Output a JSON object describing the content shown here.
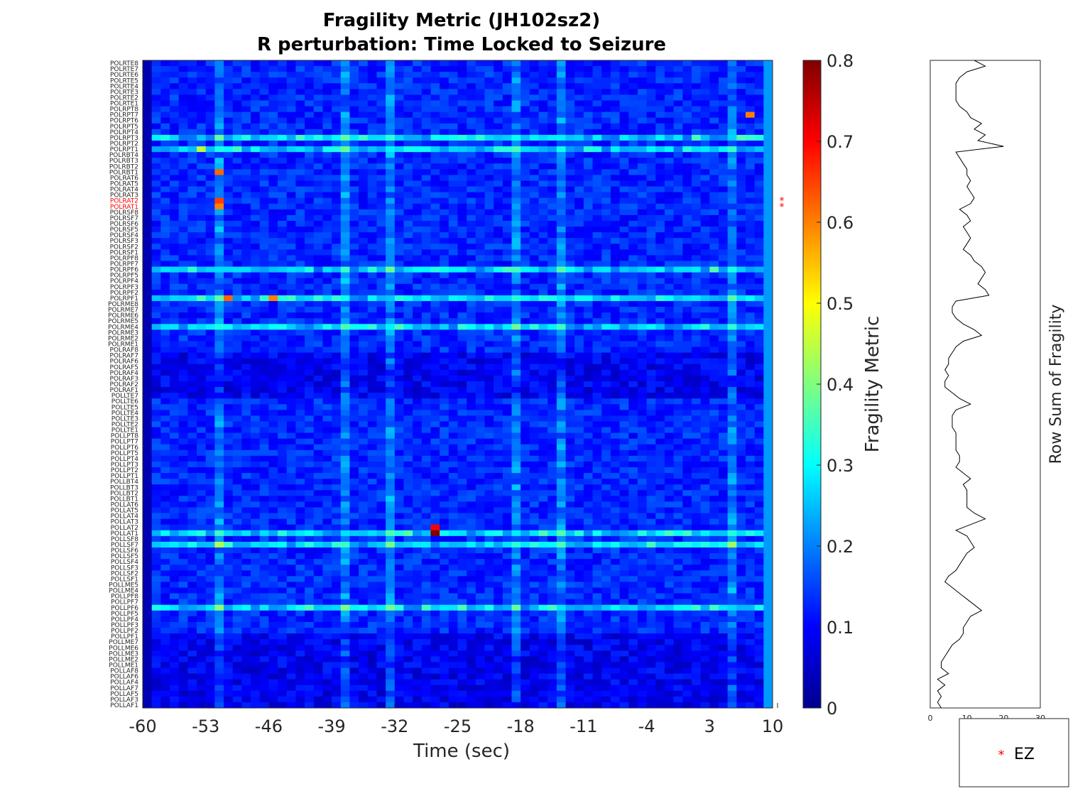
{
  "chart_data": [
    {
      "type": "heatmap",
      "title_lines": [
        "Fragility Metric (JH102sz2)",
        "R perturbation:  Time Locked to Seizure"
      ],
      "xlabel": "Time (sec)",
      "x_ticks": [
        "-60",
        "-53",
        "-46",
        "-39",
        "-32",
        "-25",
        "-18",
        "-11",
        "-4",
        "3",
        "10"
      ],
      "x_tick_values": [
        -60,
        -53,
        -46,
        -39,
        -32,
        -25,
        -18,
        -11,
        -4,
        3,
        10
      ],
      "x_range": [
        -60,
        10
      ],
      "n_time_windows": 70,
      "channels": [
        "POLRTE8",
        "POLRTE7",
        "POLRTE6",
        "POLRTE5",
        "POLRTE4",
        "POLRTE3",
        "POLRTE2",
        "POLRTE1",
        "POLRPT8",
        "POLRPT7",
        "POLRPT6",
        "POLRPT5",
        "POLRPT4",
        "POLRPT3",
        "POLRPT2",
        "POLRPT1",
        "POLRBT4",
        "POLRBT3",
        "POLRBT2",
        "POLRBT1",
        "POLRAT6",
        "POLRAT5",
        "POLRAT4",
        "POLRAT3",
        "POLRAT2",
        "POLRAT1",
        "POLRSF8",
        "POLRSF7",
        "POLRSF6",
        "POLRSF5",
        "POLRSF4",
        "POLRSF3",
        "POLRSF2",
        "POLRSF1",
        "POLRPF8",
        "POLRPF7",
        "POLRPF6",
        "POLRPF5",
        "POLRPF4",
        "POLRPF3",
        "POLRPF2",
        "POLRPF1",
        "POLRME8",
        "POLRME7",
        "POLRME6",
        "POLRME5",
        "POLRME4",
        "POLRME3",
        "POLRME2",
        "POLRME1",
        "POLRAF8",
        "POLRAF7",
        "POLRAF6",
        "POLRAF5",
        "POLRAF4",
        "POLRAF3",
        "POLRAF2",
        "POLRAF1",
        "POLLTE7",
        "POLLTE6",
        "POLLTE5",
        "POLLTE4",
        "POLLTE3",
        "POLLTE2",
        "POLLTE1",
        "POLLPT8",
        "POLLPT7",
        "POLLPT6",
        "POLLPT5",
        "POLLPT4",
        "POLLPT3",
        "POLLPT2",
        "POLLPT1",
        "POLLBT4",
        "POLLBT3",
        "POLLBT2",
        "POLLBT1",
        "POLLAT6",
        "POLLAT5",
        "POLLAT4",
        "POLLAT3",
        "POLLAT2",
        "POLLAT1",
        "POLLSF8",
        "POLLSF7",
        "POLLSF6",
        "POLLSF5",
        "POLLSF4",
        "POLLSF3",
        "POLLSF2",
        "POLLSF1",
        "POLLME5",
        "POLLME4",
        "POLLPF8",
        "POLLPF7",
        "POLLPF6",
        "POLLPF5",
        "POLLPF4",
        "POLLPF3",
        "POLLPF2",
        "POLLPF1",
        "POLLME7",
        "POLLME6",
        "POLLME3",
        "POLLME2",
        "POLLME1",
        "POLLAF8",
        "POLLAF6",
        "POLLAF4",
        "POLLAF7",
        "POLLAF5",
        "POLLAF3",
        "POLLAF1"
      ],
      "ez_channels": [
        "POLRAT2",
        "POLRAT1"
      ],
      "colorbar": {
        "label": "Fragility Metric",
        "range": [
          0,
          0.8
        ],
        "ticks": [
          "0",
          "0.1",
          "0.2",
          "0.3",
          "0.4",
          "0.5",
          "0.6",
          "0.7",
          "0.8"
        ],
        "tick_values": [
          0,
          0.1,
          0.2,
          0.3,
          0.4,
          0.5,
          0.6,
          0.7,
          0.8
        ],
        "colormap": "jet"
      },
      "hot_spots": [
        {
          "channel": "POLRPT1",
          "time": -54,
          "value": 0.45
        },
        {
          "channel": "POLRPT7",
          "time": 8,
          "value": 0.6
        },
        {
          "channel": "POLRBT1",
          "time": -52,
          "value": 0.62
        },
        {
          "channel": "POLRAT2",
          "time": -52,
          "value": 0.65
        },
        {
          "channel": "POLRAT1",
          "time": -52,
          "value": 0.6
        },
        {
          "channel": "POLRPF1",
          "time": -51,
          "value": 0.62
        },
        {
          "channel": "POLRPF1",
          "time": -46,
          "value": 0.6
        },
        {
          "channel": "POLLAT2",
          "time": -28,
          "value": 0.7
        },
        {
          "channel": "POLLAT1",
          "time": -28,
          "value": 0.8
        }
      ],
      "grid": false
    },
    {
      "type": "line",
      "ylabel": "Row Sum of Fragility",
      "x_ticks": [
        "0",
        "10",
        "20",
        "30"
      ],
      "x_tick_values": [
        0,
        10,
        20,
        30
      ],
      "x_range": [
        0,
        30
      ],
      "values": [
        12,
        15,
        10,
        8,
        7,
        7,
        7,
        7,
        8,
        10,
        11,
        14,
        12,
        15,
        13,
        20,
        7,
        8,
        9,
        10,
        10,
        11,
        10,
        11,
        12,
        11,
        8,
        10,
        11,
        9,
        10,
        11,
        10,
        9,
        11,
        12,
        14,
        15,
        14,
        13,
        15,
        16,
        7,
        6,
        6,
        7,
        9,
        12,
        14,
        9,
        7,
        6,
        5,
        5,
        4,
        5,
        4,
        4,
        6,
        8,
        11,
        7,
        6,
        6,
        6,
        7,
        7,
        7,
        7,
        8,
        8,
        7,
        9,
        11,
        9,
        10,
        10,
        10,
        10,
        12,
        15,
        11,
        7,
        10,
        11,
        12,
        10,
        9,
        8,
        7,
        5,
        4,
        6,
        8,
        10,
        12,
        14,
        11,
        10,
        9,
        9,
        8,
        6,
        5,
        4,
        3,
        3,
        5,
        2,
        4,
        2,
        3,
        2,
        3
      ]
    }
  ],
  "legend": {
    "entries": [
      {
        "marker": "*",
        "label": "EZ",
        "color": "#ff0000"
      }
    ]
  },
  "colors": {
    "ez_marker": "#ff0000",
    "row_sum_line": "#000000"
  }
}
